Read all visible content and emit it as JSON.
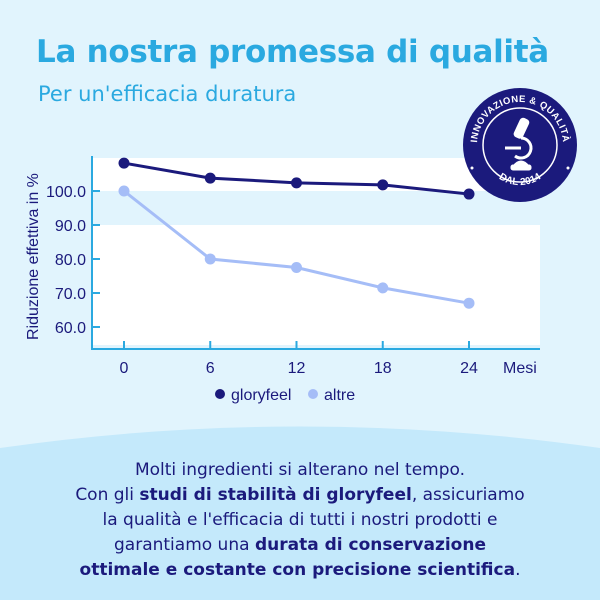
{
  "title": "La nostra promessa di qualità",
  "subtitle": "Per un'efficacia duratura",
  "badge": {
    "top_text": "INNOVAZIONE & QUALITÀ",
    "bottom_text": "DAL 2014",
    "icon": "microscope-icon",
    "color": "#1b1a7c"
  },
  "chart_data": {
    "type": "line",
    "ylabel": "Riduzione effettiva in %",
    "xlabel": "Mesi",
    "x": [
      0,
      6,
      12,
      18,
      24
    ],
    "x_tick_labels": [
      "0",
      "6",
      "12",
      "18",
      "24"
    ],
    "y_tick_labels": [
      "100.0",
      "90.0",
      "80.0",
      "70.0",
      "60.0"
    ],
    "y_ticks": [
      100,
      90,
      80,
      70,
      60
    ],
    "ylim": [
      53,
      110
    ],
    "legend_position": "bottom",
    "series": [
      {
        "name": "gloryfeel",
        "values": [
          108.2,
          103.8,
          102.4,
          101.8,
          99.1
        ],
        "color": "#1b1a7c"
      },
      {
        "name": "altre",
        "values": [
          100,
          80,
          77.5,
          71.5,
          67
        ],
        "color": "#a5bdf7"
      }
    ]
  },
  "body": {
    "line1": "Molti ingredienti si alterano nel tempo.",
    "line2a": "Con gli ",
    "line2b": "studi di stabilità di gloryfeel",
    "line2c": ", assicuriamo",
    "line3": "la qualità e l'efficacia di tutti i nostri prodotti e",
    "line4a": "garantiamo una ",
    "line4b": "durata di conservazione",
    "line5a": "ottimale e costante con precisione scientifica",
    "line5b": "."
  }
}
